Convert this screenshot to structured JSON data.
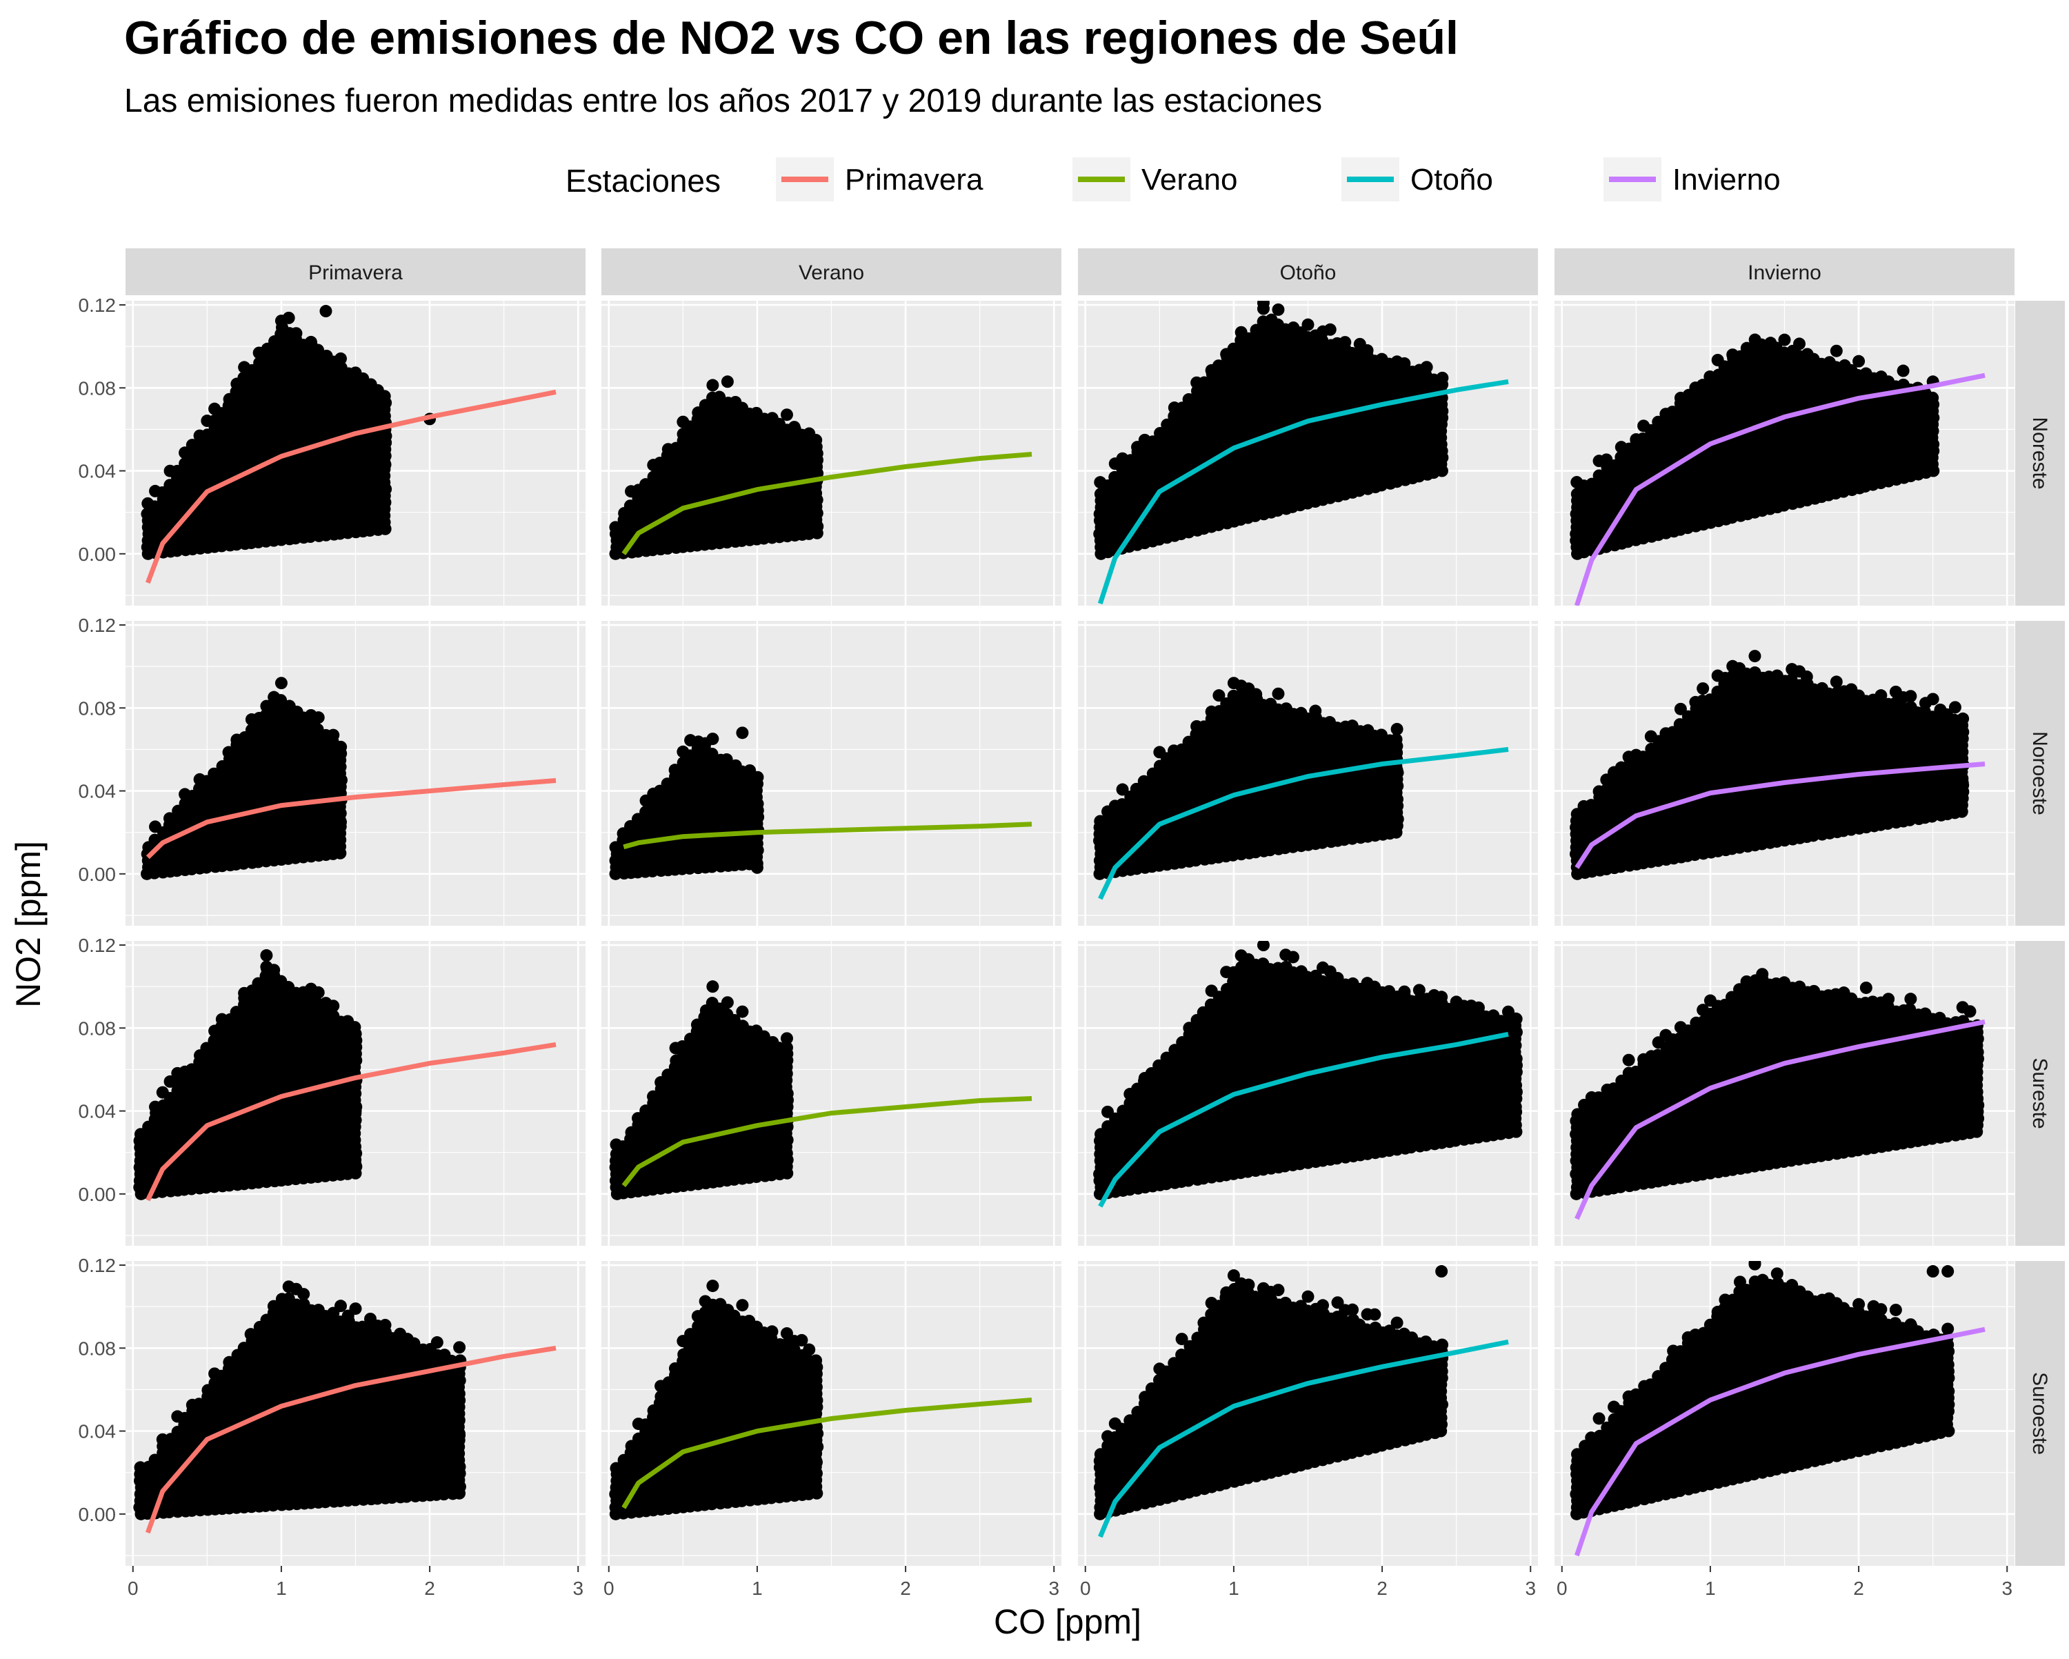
{
  "title": "Gráfico de emisiones de NO2 vs CO en las regiones de Seúl",
  "subtitle": "Las emisiones fueron medidas entre los años 2017 y 2019 durante las estaciones",
  "colors": {
    "panel_bg": "#ebebeb",
    "grid": "#ffffff",
    "strip_bg": "#d9d9d9",
    "points": "#000000",
    "axis_text": "#4d4d4d"
  },
  "chart_data": {
    "type": "scatter",
    "title": "Gráfico de emisiones de NO2 vs CO en las regiones de Seúl",
    "subtitle": "Las emisiones fueron medidas entre los años 2017 y 2019 durante las estaciones",
    "xlabel": "CO [ppm]",
    "ylabel": "NO2 [ppm]",
    "xlim": [
      -0.05,
      3.05
    ],
    "ylim": [
      -0.025,
      0.122
    ],
    "x_ticks": [
      0,
      1,
      2,
      3
    ],
    "x_tick_labels": [
      "0",
      "1",
      "2",
      "3"
    ],
    "y_ticks": [
      0,
      0.04,
      0.08,
      0.12
    ],
    "y_tick_labels": [
      "0.00",
      "0.04",
      "0.08",
      "0.12"
    ],
    "grid": true,
    "legend": {
      "title": "Estaciones",
      "position": "top",
      "entries": [
        {
          "name": "Primavera",
          "color": "#F8766D"
        },
        {
          "name": "Verano",
          "color": "#7CAE00"
        },
        {
          "name": "Otoño",
          "color": "#00BFC4"
        },
        {
          "name": "Invierno",
          "color": "#C77CFF"
        }
      ]
    },
    "columns": [
      "Primavera",
      "Verano",
      "Otoño",
      "Invierno"
    ],
    "rows": [
      "Noreste",
      "Noroeste",
      "Sureste",
      "Suroeste"
    ],
    "panels": [
      {
        "row": "Noreste",
        "col": "Primavera",
        "points": {
          "x_range": [
            0.1,
            1.7
          ],
          "peak_x": 1.0,
          "low": [
            0.0,
            0.012
          ],
          "high": [
            0.02,
            0.117
          ],
          "outliers": [
            [
              1.7,
              0.043
            ],
            [
              2.0,
              0.065
            ],
            [
              1.3,
              0.117
            ]
          ]
        },
        "fit": {
          "x": [
            0.1,
            0.2,
            0.5,
            1.0,
            1.5,
            2.0,
            2.5,
            2.85
          ],
          "y": [
            -0.014,
            0.005,
            0.03,
            0.047,
            0.058,
            0.066,
            0.073,
            0.078
          ]
        }
      },
      {
        "row": "Noreste",
        "col": "Verano",
        "points": {
          "x_range": [
            0.05,
            1.4
          ],
          "peak_x": 0.7,
          "low": [
            0.0,
            0.01
          ],
          "high": [
            0.015,
            0.083
          ],
          "outliers": [
            [
              1.4,
              0.035
            ],
            [
              0.8,
              0.083
            ]
          ]
        },
        "fit": {
          "x": [
            0.1,
            0.2,
            0.5,
            1.0,
            1.5,
            2.0,
            2.5,
            2.85
          ],
          "y": [
            0.0,
            0.01,
            0.022,
            0.031,
            0.037,
            0.042,
            0.046,
            0.048
          ]
        }
      },
      {
        "row": "Noreste",
        "col": "Otoño",
        "points": {
          "x_range": [
            0.1,
            2.4
          ],
          "peak_x": 1.2,
          "low": [
            0.0,
            0.04
          ],
          "high": [
            0.03,
            0.121
          ],
          "outliers": [
            [
              2.4,
              0.065
            ],
            [
              1.2,
              0.121
            ],
            [
              2.3,
              0.09
            ]
          ]
        },
        "fit": {
          "x": [
            0.1,
            0.2,
            0.5,
            1.0,
            1.5,
            2.0,
            2.5,
            2.85
          ],
          "y": [
            -0.024,
            -0.002,
            0.03,
            0.051,
            0.064,
            0.072,
            0.079,
            0.083
          ]
        }
      },
      {
        "row": "Noreste",
        "col": "Invierno",
        "points": {
          "x_range": [
            0.1,
            2.5
          ],
          "peak_x": 1.3,
          "low": [
            0.0,
            0.04
          ],
          "high": [
            0.03,
            0.11
          ],
          "outliers": [
            [
              2.4,
              0.047
            ],
            [
              2.3,
              0.078
            ],
            [
              2.5,
              0.083
            ]
          ]
        },
        "fit": {
          "x": [
            0.1,
            0.2,
            0.5,
            1.0,
            1.5,
            2.0,
            2.5,
            2.85
          ],
          "y": [
            -0.025,
            -0.003,
            0.031,
            0.053,
            0.066,
            0.075,
            0.081,
            0.086
          ]
        }
      },
      {
        "row": "Noroeste",
        "col": "Primavera",
        "points": {
          "x_range": [
            0.1,
            1.4
          ],
          "peak_x": 1.0,
          "low": [
            0.0,
            0.01
          ],
          "high": [
            0.015,
            0.092
          ],
          "outliers": [
            [
              1.0,
              0.092
            ],
            [
              1.4,
              0.025
            ]
          ]
        },
        "fit": {
          "x": [
            0.1,
            0.2,
            0.5,
            1.0,
            1.5,
            2.0,
            2.5,
            2.85
          ],
          "y": [
            0.008,
            0.015,
            0.025,
            0.033,
            0.037,
            0.04,
            0.043,
            0.045
          ]
        }
      },
      {
        "row": "Noroeste",
        "col": "Verano",
        "points": {
          "x_range": [
            0.05,
            1.0
          ],
          "peak_x": 0.6,
          "low": [
            0.0,
            0.005
          ],
          "high": [
            0.015,
            0.068
          ],
          "outliers": [
            [
              0.9,
              0.068
            ],
            [
              1.0,
              0.003
            ]
          ]
        },
        "fit": {
          "x": [
            0.1,
            0.2,
            0.5,
            1.0,
            1.5,
            2.0,
            2.5,
            2.85
          ],
          "y": [
            0.013,
            0.015,
            0.018,
            0.02,
            0.021,
            0.022,
            0.023,
            0.024
          ]
        }
      },
      {
        "row": "Noroeste",
        "col": "Otoño",
        "points": {
          "x_range": [
            0.1,
            2.1
          ],
          "peak_x": 1.0,
          "low": [
            0.0,
            0.02
          ],
          "high": [
            0.025,
            0.092
          ],
          "outliers": [
            [
              1.0,
              0.092
            ],
            [
              2.1,
              0.05
            ]
          ]
        },
        "fit": {
          "x": [
            0.1,
            0.2,
            0.5,
            1.0,
            1.5,
            2.0,
            2.5,
            2.85
          ],
          "y": [
            -0.012,
            0.003,
            0.024,
            0.038,
            0.047,
            0.053,
            0.057,
            0.06
          ]
        }
      },
      {
        "row": "Noroeste",
        "col": "Invierno",
        "points": {
          "x_range": [
            0.1,
            2.7
          ],
          "peak_x": 1.2,
          "low": [
            0.0,
            0.03
          ],
          "high": [
            0.03,
            0.105
          ],
          "outliers": [
            [
              2.7,
              0.044
            ],
            [
              2.4,
              0.062
            ],
            [
              1.3,
              0.105
            ]
          ]
        },
        "fit": {
          "x": [
            0.1,
            0.2,
            0.5,
            1.0,
            1.5,
            2.0,
            2.5,
            2.85
          ],
          "y": [
            0.003,
            0.014,
            0.028,
            0.039,
            0.044,
            0.048,
            0.051,
            0.053
          ]
        }
      },
      {
        "row": "Sureste",
        "col": "Primavera",
        "points": {
          "x_range": [
            0.05,
            1.5
          ],
          "peak_x": 0.9,
          "low": [
            0.0,
            0.01
          ],
          "high": [
            0.03,
            0.115
          ],
          "outliers": [
            [
              1.5,
              0.014
            ],
            [
              1.5,
              0.04
            ],
            [
              0.9,
              0.115
            ]
          ]
        },
        "fit": {
          "x": [
            0.1,
            0.2,
            0.5,
            1.0,
            1.5,
            2.0,
            2.5,
            2.85
          ],
          "y": [
            -0.003,
            0.012,
            0.033,
            0.047,
            0.056,
            0.063,
            0.068,
            0.072
          ]
        }
      },
      {
        "row": "Sureste",
        "col": "Verano",
        "points": {
          "x_range": [
            0.05,
            1.2
          ],
          "peak_x": 0.7,
          "low": [
            0.0,
            0.01
          ],
          "high": [
            0.02,
            0.1
          ],
          "outliers": [
            [
              0.7,
              0.1
            ],
            [
              1.2,
              0.075
            ]
          ]
        },
        "fit": {
          "x": [
            0.1,
            0.2,
            0.5,
            1.0,
            1.5,
            2.0,
            2.5,
            2.85
          ],
          "y": [
            0.004,
            0.013,
            0.025,
            0.033,
            0.039,
            0.042,
            0.045,
            0.046
          ]
        }
      },
      {
        "row": "Sureste",
        "col": "Otoño",
        "points": {
          "x_range": [
            0.1,
            2.9
          ],
          "peak_x": 1.1,
          "low": [
            0.0,
            0.03
          ],
          "high": [
            0.03,
            0.12
          ],
          "outliers": [
            [
              2.9,
              0.042
            ],
            [
              2.4,
              0.05
            ],
            [
              2.1,
              0.095
            ],
            [
              1.2,
              0.12
            ]
          ]
        },
        "fit": {
          "x": [
            0.1,
            0.2,
            0.5,
            1.0,
            1.5,
            2.0,
            2.5,
            2.85
          ],
          "y": [
            -0.006,
            0.007,
            0.03,
            0.048,
            0.058,
            0.066,
            0.072,
            0.077
          ]
        }
      },
      {
        "row": "Sureste",
        "col": "Invierno",
        "points": {
          "x_range": [
            0.1,
            2.8
          ],
          "peak_x": 1.3,
          "low": [
            0.0,
            0.03
          ],
          "high": [
            0.04,
            0.11
          ],
          "outliers": [
            [
              2.8,
              0.04
            ],
            [
              2.7,
              0.09
            ],
            [
              2.3,
              0.072
            ]
          ]
        },
        "fit": {
          "x": [
            0.1,
            0.2,
            0.5,
            1.0,
            1.5,
            2.0,
            2.5,
            2.85
          ],
          "y": [
            -0.012,
            0.004,
            0.032,
            0.051,
            0.063,
            0.071,
            0.078,
            0.083
          ]
        }
      },
      {
        "row": "Suroeste",
        "col": "Primavera",
        "points": {
          "x_range": [
            0.05,
            2.2
          ],
          "peak_x": 1.0,
          "low": [
            0.0,
            0.01
          ],
          "high": [
            0.02,
            0.112
          ],
          "outliers": [
            [
              2.2,
              0.038
            ],
            [
              1.8,
              0.042
            ],
            [
              1.7,
              0.065
            ]
          ]
        },
        "fit": {
          "x": [
            0.1,
            0.2,
            0.5,
            1.0,
            1.5,
            2.0,
            2.5,
            2.85
          ],
          "y": [
            -0.009,
            0.011,
            0.036,
            0.052,
            0.062,
            0.069,
            0.076,
            0.08
          ]
        }
      },
      {
        "row": "Suroeste",
        "col": "Verano",
        "points": {
          "x_range": [
            0.05,
            1.4
          ],
          "peak_x": 0.7,
          "low": [
            0.0,
            0.01
          ],
          "high": [
            0.02,
            0.11
          ],
          "outliers": [
            [
              0.7,
              0.11
            ],
            [
              1.4,
              0.025
            ]
          ]
        },
        "fit": {
          "x": [
            0.1,
            0.2,
            0.5,
            1.0,
            1.5,
            2.0,
            2.5,
            2.85
          ],
          "y": [
            0.003,
            0.015,
            0.03,
            0.04,
            0.046,
            0.05,
            0.053,
            0.055
          ]
        }
      },
      {
        "row": "Suroeste",
        "col": "Otoño",
        "points": {
          "x_range": [
            0.1,
            2.4
          ],
          "peak_x": 1.0,
          "low": [
            0.0,
            0.04
          ],
          "high": [
            0.03,
            0.116
          ],
          "outliers": [
            [
              2.4,
              0.117
            ],
            [
              2.2,
              0.085
            ],
            [
              1.0,
              0.115
            ]
          ]
        },
        "fit": {
          "x": [
            0.1,
            0.2,
            0.5,
            1.0,
            1.5,
            2.0,
            2.5,
            2.85
          ],
          "y": [
            -0.011,
            0.006,
            0.032,
            0.052,
            0.063,
            0.071,
            0.078,
            0.083
          ]
        }
      },
      {
        "row": "Suroeste",
        "col": "Invierno",
        "points": {
          "x_range": [
            0.1,
            2.6
          ],
          "peak_x": 1.3,
          "low": [
            0.0,
            0.04
          ],
          "high": [
            0.03,
            0.121
          ],
          "outliers": [
            [
              2.6,
              0.117
            ],
            [
              2.5,
              0.117
            ],
            [
              1.3,
              0.121
            ],
            [
              1.5,
              0.098
            ]
          ]
        },
        "fit": {
          "x": [
            0.1,
            0.2,
            0.5,
            1.0,
            1.5,
            2.0,
            2.5,
            2.85
          ],
          "y": [
            -0.02,
            0.001,
            0.034,
            0.055,
            0.068,
            0.077,
            0.084,
            0.089
          ]
        }
      }
    ]
  }
}
